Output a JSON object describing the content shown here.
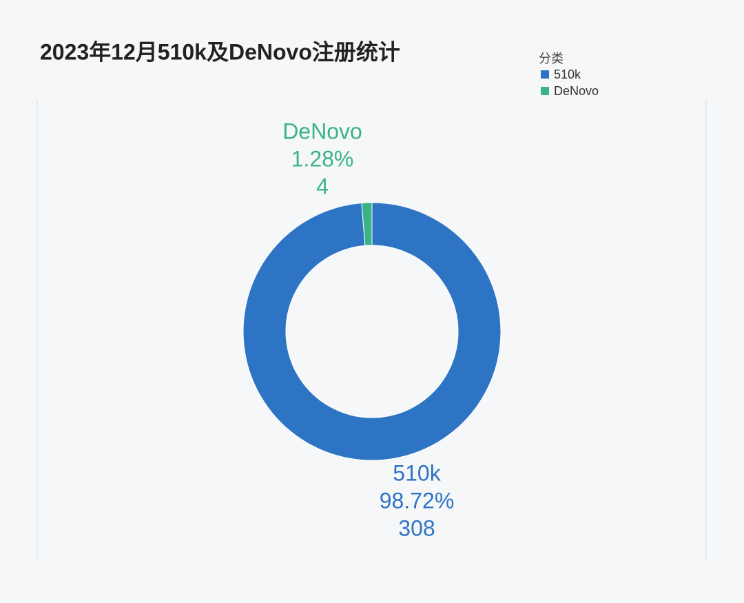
{
  "chart_data": {
    "type": "donut",
    "title": "2023年12月510k及DeNovo注册统计",
    "legend_title": "分类",
    "categories": [
      "510k",
      "DeNovo"
    ],
    "values": [
      308,
      4
    ],
    "percent_labels": [
      "98.72%",
      "1.28%"
    ],
    "colors": [
      "#2e74c4",
      "#3bb389"
    ]
  }
}
